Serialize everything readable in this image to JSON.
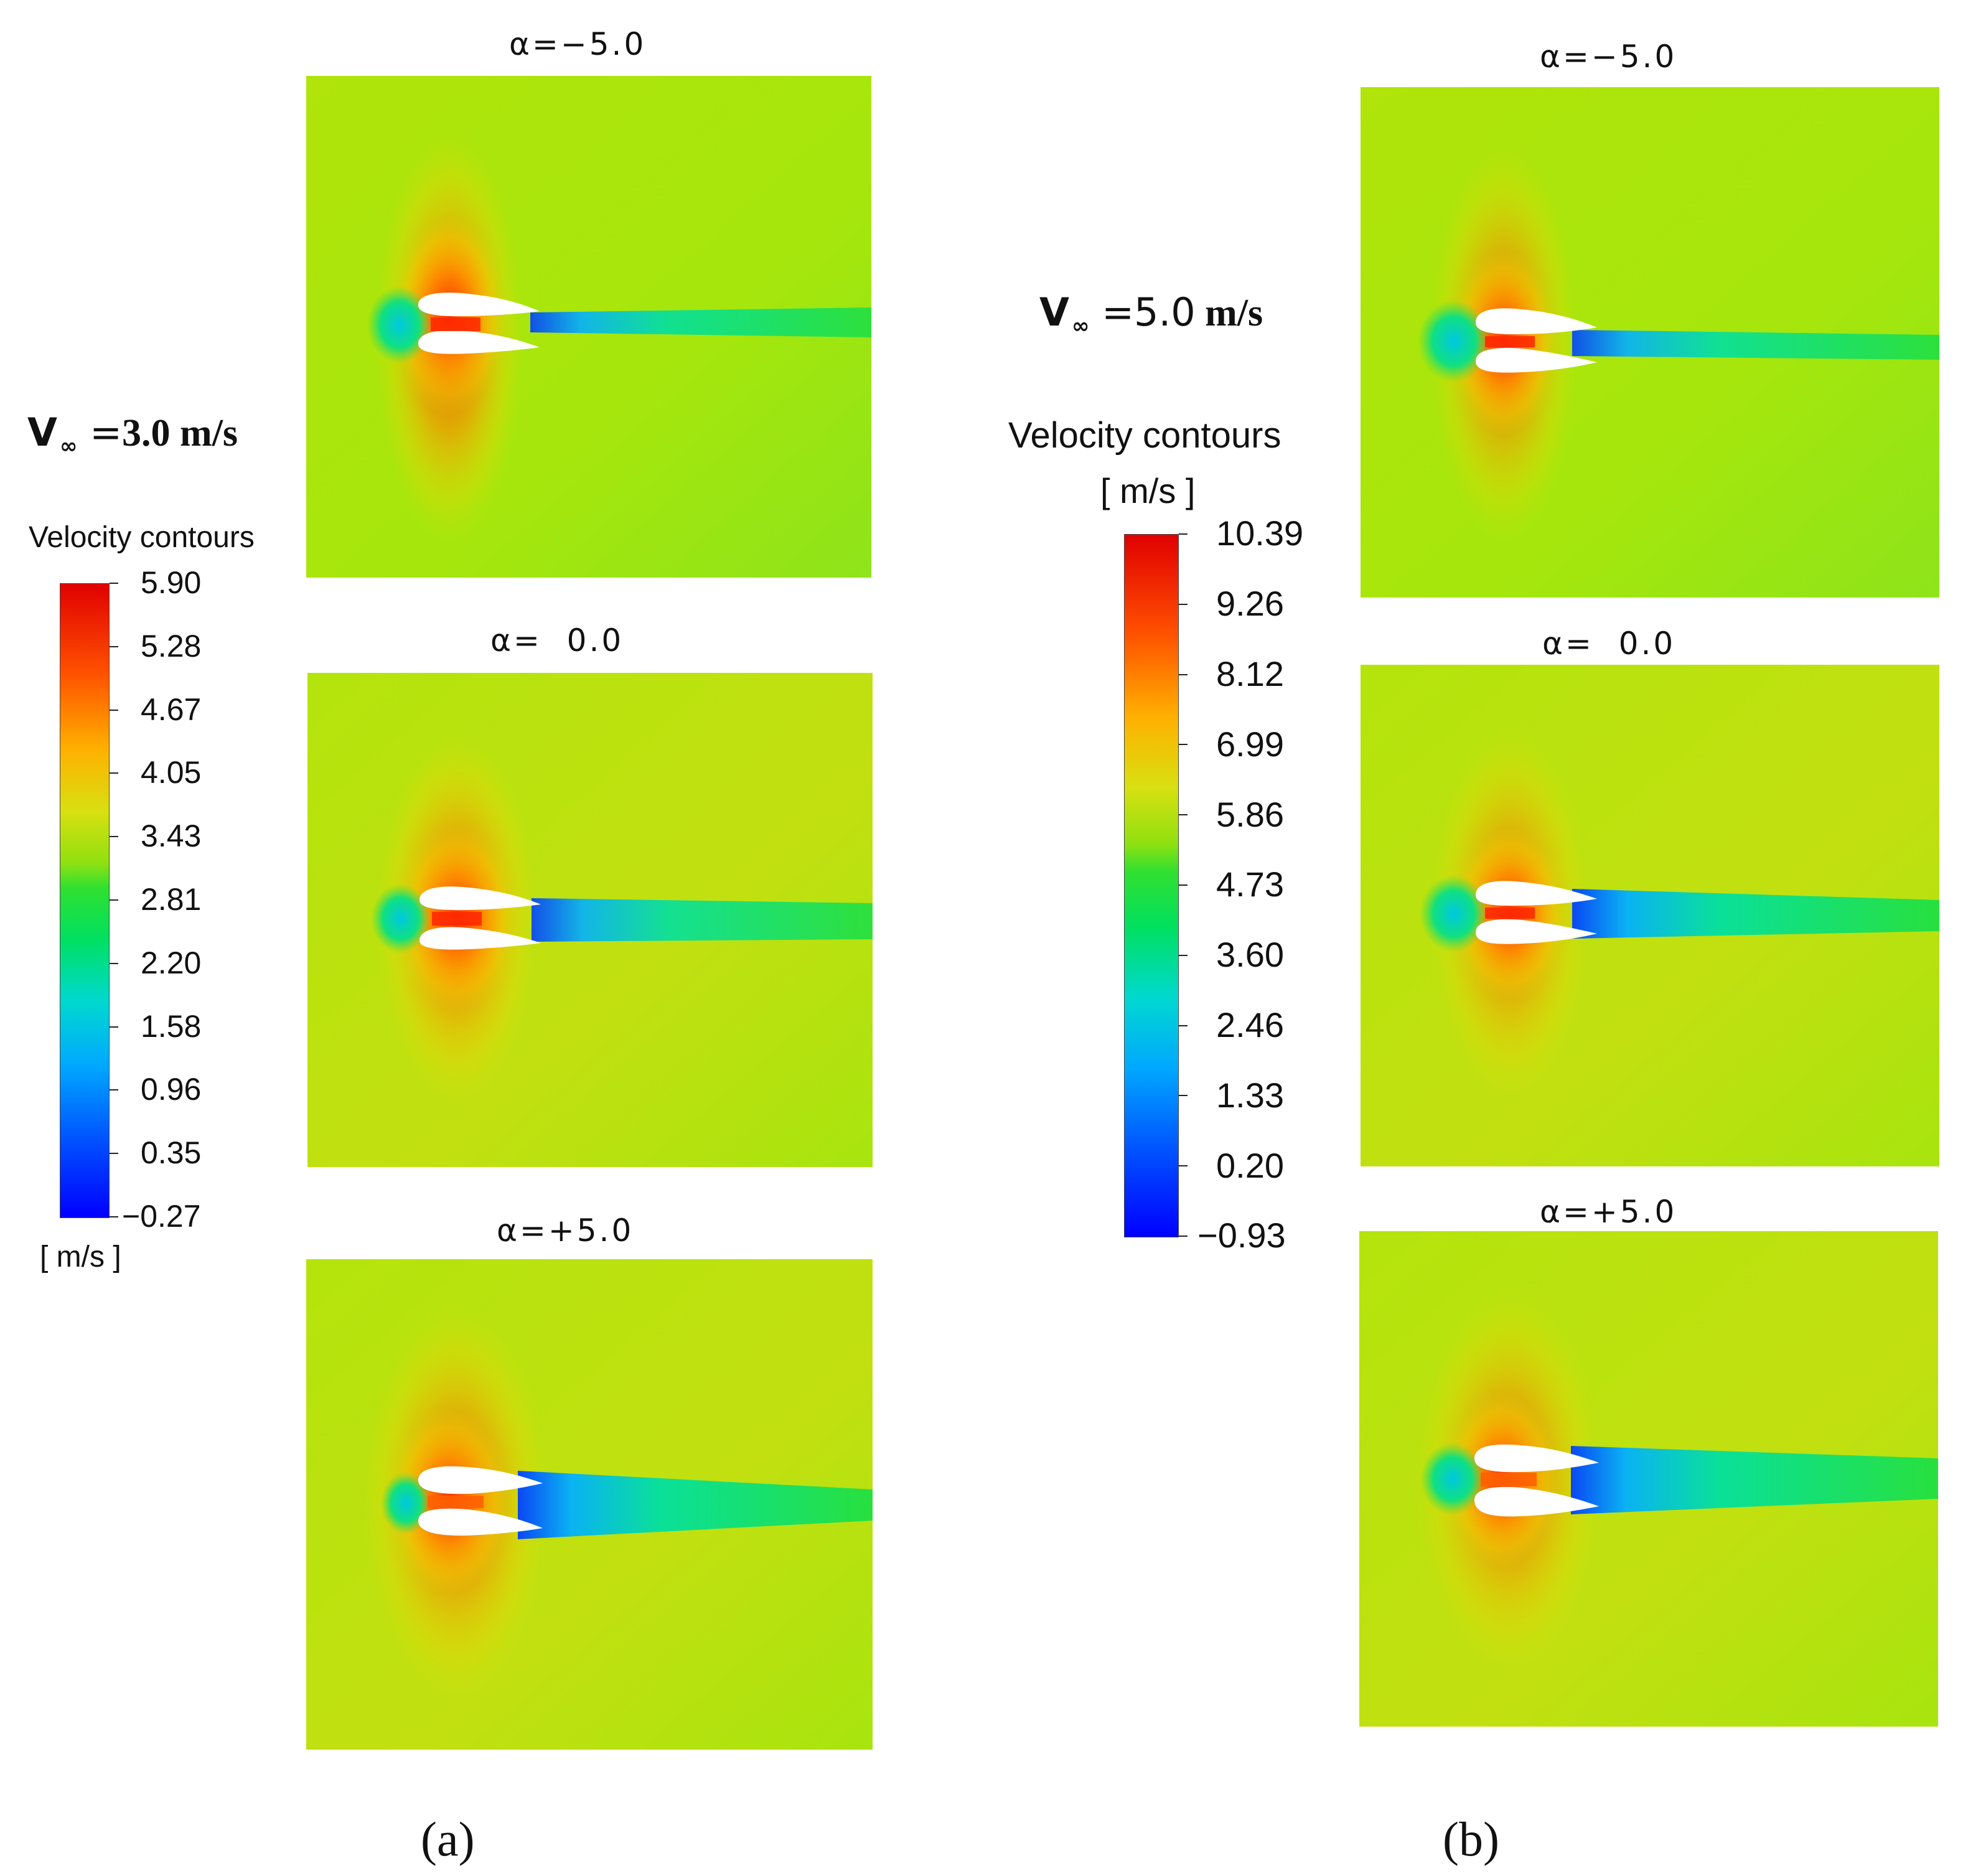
{
  "left_group": {
    "freestream_label": {
      "symbol": "V",
      "subscript": "∞",
      "equals": " =",
      "value": "3.0",
      "unit": " m/s"
    },
    "legend": {
      "title": "Velocity contours",
      "unit_label": "[ m/s ]",
      "ticks": [
        "5.90",
        "5.28",
        "4.67",
        "4.05",
        "3.43",
        "2.81",
        "2.20",
        "1.58",
        "0.96",
        "0.35",
        "−0.27"
      ]
    },
    "panels": [
      {
        "title": "α=−5.0"
      },
      {
        "title": "α=  0.0"
      },
      {
        "title": "α=+5.0"
      }
    ],
    "caption": "(a)"
  },
  "right_group": {
    "freestream_label": {
      "symbol": "V",
      "subscript": "∞",
      "equals": " =",
      "value": "5.0",
      "unit": " m/s"
    },
    "legend": {
      "title": "Velocity contours",
      "unit_label": "[ m/s ]",
      "ticks": [
        "10.39",
        "9.26",
        "8.12",
        "6.99",
        "5.86",
        "4.73",
        "3.60",
        "2.46",
        "1.33",
        "0.20",
        "−0.93"
      ]
    },
    "panels": [
      {
        "title": "α=−5.0"
      },
      {
        "title": "α=  0.0"
      },
      {
        "title": "α=+5.0"
      }
    ],
    "caption": "(b)"
  },
  "colors": {
    "background_field": "#a8e60a",
    "colormap": [
      "#0000ff",
      "#0060ff",
      "#00b0ff",
      "#00e0c0",
      "#10e050",
      "#90e410",
      "#d8e010",
      "#ffb000",
      "#ff6000",
      "#ff1000",
      "#e00000"
    ]
  }
}
